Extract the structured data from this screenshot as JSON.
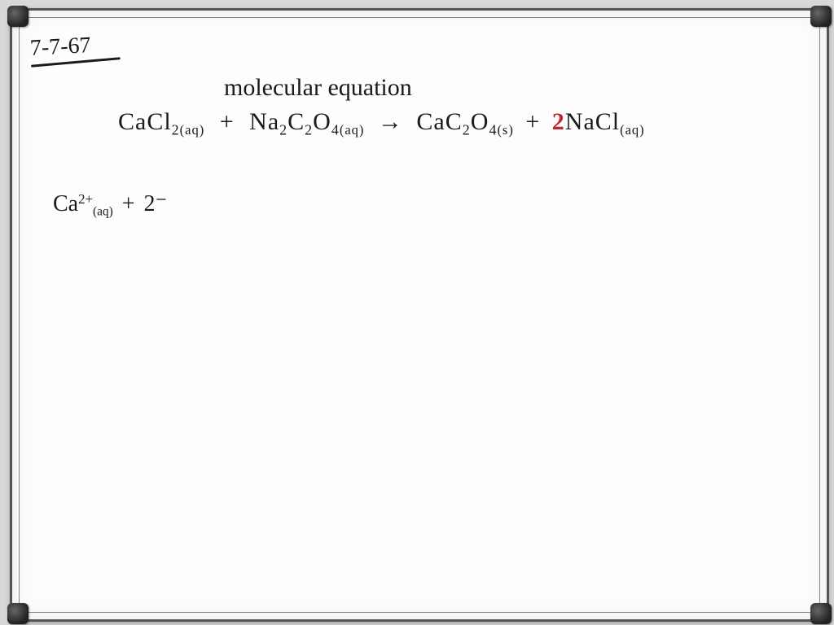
{
  "colors": {
    "ink": "#1a1a1a",
    "accent_red": "#c1272d",
    "board": "#fdfdfd",
    "frame": "#555555",
    "background": "#d8d8d8"
  },
  "date": "7-7-67",
  "title": "molecular equation",
  "equation": {
    "r1": {
      "formula": "CaCl",
      "sub": "2",
      "state": "(aq)"
    },
    "plus1": "+",
    "r2": {
      "formula_a": "Na",
      "sub_a": "2",
      "formula_b": "C",
      "sub_b": "2",
      "formula_c": "O",
      "sub_c": "4",
      "state": "(aq)"
    },
    "arrow": "→",
    "p1": {
      "formula_a": "CaC",
      "sub_a": "2",
      "formula_b": "O",
      "sub_b": "4",
      "state": "(s)"
    },
    "plus2": "+",
    "coef_red": "2",
    "p2": {
      "formula": "NaCl",
      "state": "(aq)"
    }
  },
  "ion_line": {
    "species": "Ca",
    "charge": "2+",
    "state": "(aq)",
    "plus": "+",
    "tail": "2⁻"
  }
}
